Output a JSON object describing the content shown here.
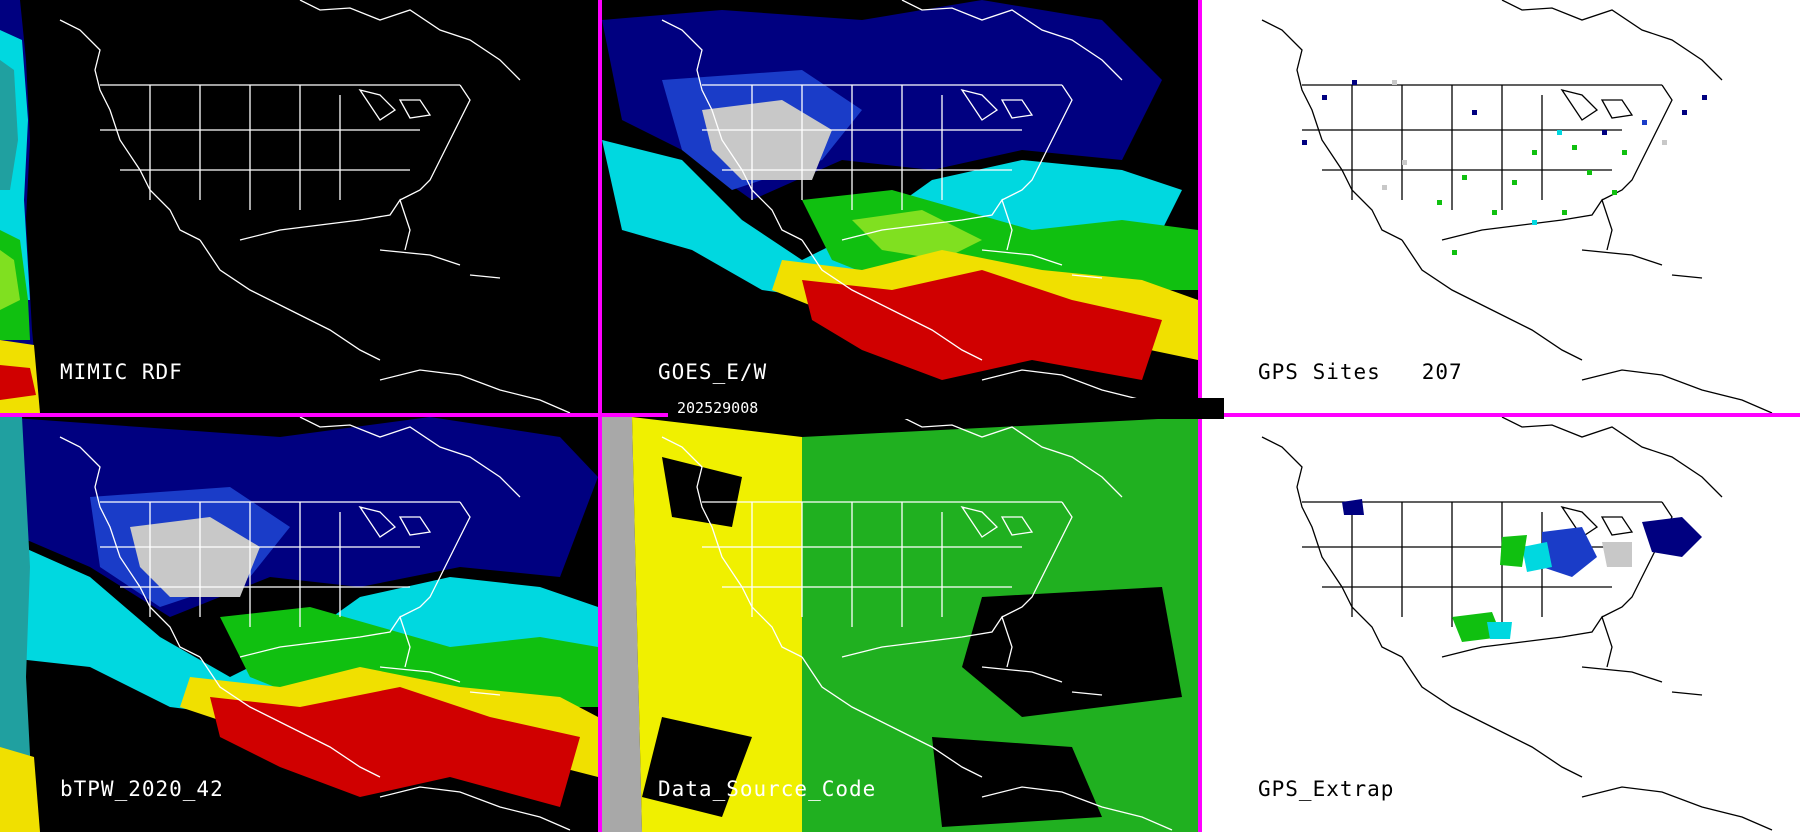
{
  "panels": [
    {
      "id": "p1",
      "label": "MIMIC RDF",
      "theme": "dark"
    },
    {
      "id": "p2",
      "label": "GOES_E/W",
      "theme": "dark"
    },
    {
      "id": "p3",
      "label": "GPS Sites   207",
      "theme": "light"
    },
    {
      "id": "p4",
      "label": "bTPW_2020_42",
      "theme": "dark"
    },
    {
      "id": "p5",
      "label": "Data_Source_Code",
      "theme": "dark"
    },
    {
      "id": "p6",
      "label": "GPS_Extrap",
      "theme": "light"
    }
  ],
  "timestamp": "202529008",
  "colors": {
    "divider": "#ff00ff",
    "outline_dark": "#ffffff",
    "outline_light": "#000000",
    "tpw_grey": "#c8c8c8",
    "tpw_navy": "#000080",
    "tpw_blue": "#1a3cc8",
    "tpw_cyan": "#00d8e0",
    "tpw_teal": "#20a0a0",
    "tpw_green": "#10c010",
    "tpw_lime": "#80e020",
    "tpw_yellow": "#f0e000",
    "tpw_red": "#d00000",
    "source_grey": "#a8a8a8",
    "source_yellow": "#f0f000",
    "source_green": "#20b020"
  }
}
